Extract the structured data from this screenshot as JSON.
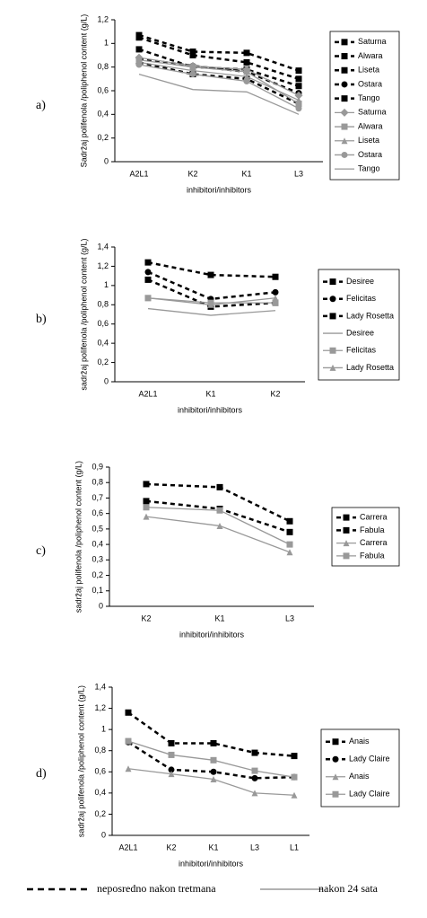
{
  "chart_data": [
    {
      "type": "line",
      "panel": "a)",
      "ylabel": "Sadržaj polifenola /poliphenol content (g/L)",
      "xlabel": "inhibitori/inhibitors",
      "categories": [
        "A2L1",
        "K2",
        "K1",
        "L3"
      ],
      "ylim": [
        0,
        1.2
      ],
      "yticks": [
        0,
        {
          "value": 0.2,
          "label": "0,2"
        },
        {
          "value": 0.4,
          "label": "0,4"
        },
        {
          "value": 0.6,
          "label": "0,6"
        },
        {
          "value": 0.8,
          "label": "0,8"
        },
        1,
        {
          "value": 1.2,
          "label": "1,2"
        }
      ],
      "legend": "right",
      "series": [
        {
          "name": "Saturna",
          "color": "#000000",
          "dashed": true,
          "marker": "square",
          "values": [
            1.07,
            0.93,
            0.92,
            0.77
          ]
        },
        {
          "name": "Alwara",
          "color": "#000000",
          "dashed": true,
          "marker": "square",
          "values": [
            1.05,
            0.9,
            0.84,
            0.7
          ]
        },
        {
          "name": "Liseta",
          "color": "#000000",
          "dashed": true,
          "marker": "square",
          "values": [
            0.95,
            0.8,
            0.78,
            0.64
          ]
        },
        {
          "name": "Ostara",
          "color": "#000000",
          "dashed": true,
          "marker": "circle",
          "values": [
            0.87,
            0.81,
            0.76,
            0.58
          ]
        },
        {
          "name": "Tango",
          "color": "#000000",
          "dashed": true,
          "marker": "square",
          "values": [
            0.84,
            0.74,
            0.7,
            0.49
          ]
        },
        {
          "name": "Saturna",
          "color": "#999999",
          "dashed": false,
          "marker": "diamond",
          "values": [
            0.88,
            0.81,
            0.78,
            0.56
          ]
        },
        {
          "name": "Alwara",
          "color": "#999999",
          "dashed": false,
          "marker": "square",
          "values": [
            0.86,
            0.8,
            0.76,
            0.49
          ]
        },
        {
          "name": "Liseta",
          "color": "#999999",
          "dashed": false,
          "marker": "triangle",
          "values": [
            0.84,
            0.77,
            0.72,
            0.52
          ]
        },
        {
          "name": "Ostara",
          "color": "#999999",
          "dashed": false,
          "marker": "circle",
          "values": [
            0.82,
            0.74,
            0.68,
            0.45
          ]
        },
        {
          "name": "Tango",
          "color": "#999999",
          "dashed": false,
          "marker": "none",
          "values": [
            0.74,
            0.61,
            0.59,
            0.4
          ]
        }
      ]
    },
    {
      "type": "line",
      "panel": "b)",
      "ylabel": "sadržaj polifenola /poliphenol content (g/L)",
      "xlabel": "inhibitori/inhibitors",
      "categories": [
        "A2L1",
        "K1",
        "K2"
      ],
      "ylim": [
        0,
        1.4
      ],
      "yticks": [
        0,
        {
          "value": 0.2,
          "label": "0,2"
        },
        {
          "value": 0.4,
          "label": "0,4"
        },
        {
          "value": 0.6,
          "label": "0,6"
        },
        {
          "value": 0.8,
          "label": "0,8"
        },
        1,
        {
          "value": 1.2,
          "label": "1,2"
        },
        {
          "value": 1.4,
          "label": "1,4"
        }
      ],
      "legend": "right",
      "series": [
        {
          "name": "Desiree",
          "color": "#000000",
          "dashed": true,
          "marker": "square",
          "values": [
            1.24,
            1.11,
            1.09
          ]
        },
        {
          "name": "Felicitas",
          "color": "#000000",
          "dashed": true,
          "marker": "circle",
          "values": [
            1.14,
            0.86,
            0.93
          ]
        },
        {
          "name": "Lady Rosetta",
          "color": "#000000",
          "dashed": true,
          "marker": "square",
          "values": [
            1.06,
            0.78,
            0.82
          ]
        },
        {
          "name": "Desiree",
          "color": "#999999",
          "dashed": false,
          "marker": "none",
          "values": [
            0.76,
            0.69,
            0.74
          ]
        },
        {
          "name": "Felicitas",
          "color": "#999999",
          "dashed": false,
          "marker": "square",
          "values": [
            0.87,
            0.82,
            0.82
          ]
        },
        {
          "name": "Lady Rosetta",
          "color": "#999999",
          "dashed": false,
          "marker": "triangle",
          "values": [
            0.87,
            0.8,
            0.87
          ]
        }
      ]
    },
    {
      "type": "line",
      "panel": "c)",
      "ylabel": "sadržaj polifenola /poliphenol content (g/L)",
      "xlabel": "inhibitori/inhibitors",
      "categories": [
        "K2",
        "K1",
        "L3"
      ],
      "ylim": [
        0,
        0.9
      ],
      "yticks": [
        0,
        {
          "value": 0.1,
          "label": "0,1"
        },
        {
          "value": 0.2,
          "label": "0,2"
        },
        {
          "value": 0.3,
          "label": "0,3"
        },
        {
          "value": 0.4,
          "label": "0,4"
        },
        {
          "value": 0.5,
          "label": "0,5"
        },
        {
          "value": 0.6,
          "label": "0,6"
        },
        {
          "value": 0.7,
          "label": "0,7"
        },
        {
          "value": 0.8,
          "label": "0,8"
        },
        {
          "value": 0.9,
          "label": "0,9"
        }
      ],
      "legend": "right",
      "series": [
        {
          "name": "Carrera",
          "color": "#000000",
          "dashed": true,
          "marker": "square",
          "values": [
            0.79,
            0.77,
            0.55
          ]
        },
        {
          "name": "Fabula",
          "color": "#000000",
          "dashed": true,
          "marker": "square",
          "values": [
            0.68,
            0.63,
            0.48
          ]
        },
        {
          "name": "Carrera",
          "color": "#999999",
          "dashed": false,
          "marker": "triangle",
          "values": [
            0.58,
            0.52,
            0.35
          ]
        },
        {
          "name": "Fabula",
          "color": "#999999",
          "dashed": false,
          "marker": "square",
          "values": [
            0.64,
            0.62,
            0.4
          ]
        }
      ]
    },
    {
      "type": "line",
      "panel": "d)",
      "ylabel": "sadržaj polifenola /poliphenol content (g/L)",
      "xlabel": "inhibitori/inhibitors",
      "categories": [
        "A2L1",
        "K2",
        "K1",
        "L3",
        "L1"
      ],
      "ylim": [
        0,
        1.4
      ],
      "yticks": [
        0,
        {
          "value": 0.2,
          "label": "0,2"
        },
        {
          "value": 0.4,
          "label": "0,4"
        },
        {
          "value": 0.6,
          "label": "0,6"
        },
        {
          "value": 0.8,
          "label": "0,8"
        },
        1,
        {
          "value": 1.2,
          "label": "1,2"
        },
        {
          "value": 1.4,
          "label": "1,4"
        }
      ],
      "legend": "right",
      "series": [
        {
          "name": "Anais",
          "color": "#000000",
          "dashed": true,
          "marker": "square",
          "values": [
            1.16,
            0.87,
            0.87,
            0.78,
            0.75
          ]
        },
        {
          "name": "Lady Claire",
          "color": "#000000",
          "dashed": true,
          "marker": "circle",
          "values": [
            0.88,
            0.62,
            0.6,
            0.54,
            0.55
          ]
        },
        {
          "name": "Anais",
          "color": "#999999",
          "dashed": false,
          "marker": "triangle",
          "values": [
            0.63,
            0.58,
            0.53,
            0.4,
            0.38
          ]
        },
        {
          "name": "Lady Claire",
          "color": "#999999",
          "dashed": false,
          "marker": "square",
          "values": [
            0.89,
            0.76,
            0.71,
            0.61,
            0.55
          ]
        }
      ]
    }
  ],
  "footer_legend": [
    {
      "label": "neposredno nakon tretmana",
      "color": "#000000",
      "dashed": true
    },
    {
      "label": "nakon 24 sata",
      "color": "#999999",
      "dashed": false
    }
  ]
}
